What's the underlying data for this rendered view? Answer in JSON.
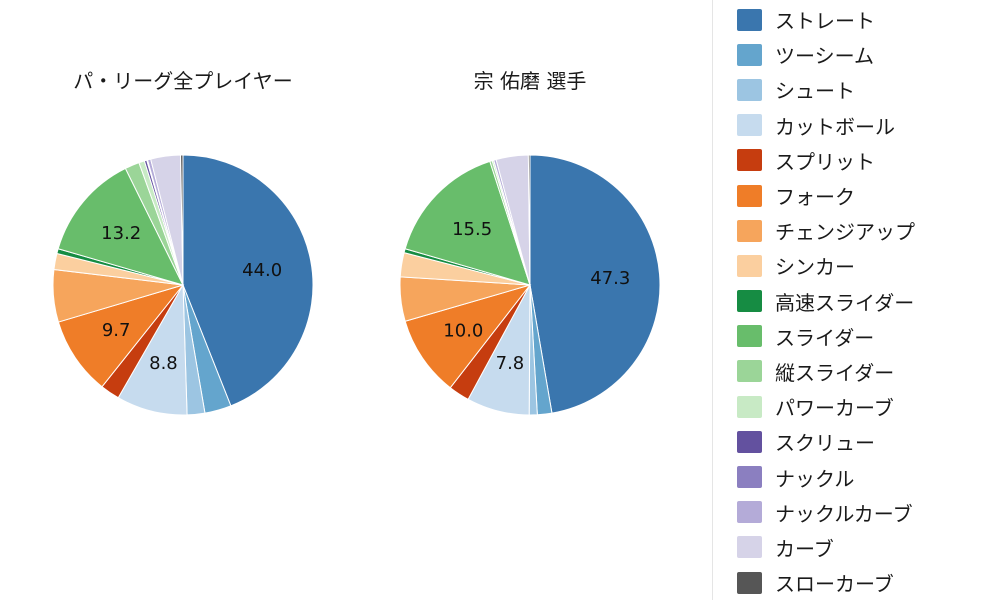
{
  "page": {
    "background": "#ffffff"
  },
  "chart_data": {
    "type": "pie",
    "unit": "percent",
    "legend_position": "right",
    "start_angle_deg": 0,
    "direction": "clockwise",
    "label_threshold": 7,
    "categories": [
      "ストレート",
      "ツーシーム",
      "シュート",
      "カットボール",
      "スプリット",
      "フォーク",
      "チェンジアップ",
      "シンカー",
      "高速スライダー",
      "スライダー",
      "縦スライダー",
      "パワーカーブ",
      "スクリュー",
      "ナックル",
      "ナックルカーブ",
      "カーブ",
      "スローカーブ"
    ],
    "colors": [
      "#3a76ae",
      "#64a5cd",
      "#9cc5e2",
      "#c6dbee",
      "#c63d0f",
      "#ef7d28",
      "#f6a55c",
      "#fbcf9f",
      "#168c43",
      "#68bd6b",
      "#9bd598",
      "#c8eac5",
      "#63519f",
      "#8b7fc0",
      "#b4abd8",
      "#d6d3e8",
      "#565656"
    ],
    "series": [
      {
        "name": "パ・リーグ全プレイヤー",
        "values": [
          44.0,
          3.3,
          2.2,
          8.8,
          2.4,
          9.7,
          6.5,
          2.0,
          0.6,
          13.2,
          1.8,
          0.7,
          0.3,
          0.1,
          0.4,
          3.7,
          0.3
        ],
        "visible_labels": {
          "ストレート": "44.0",
          "カットボール": "8.8",
          "フォーク": "9.7",
          "スライダー": "13.2"
        }
      },
      {
        "name": "宗 佑磨  選手",
        "values": [
          47.3,
          1.8,
          1.0,
          7.8,
          2.6,
          10.0,
          5.5,
          3.0,
          0.5,
          15.5,
          0.3,
          0.2,
          0.0,
          0.0,
          0.3,
          4.0,
          0.2
        ],
        "visible_labels": {
          "ストレート": "47.3",
          "カットボール": "7.8",
          "フォーク": "10.0",
          "スライダー": "15.5"
        }
      }
    ]
  }
}
